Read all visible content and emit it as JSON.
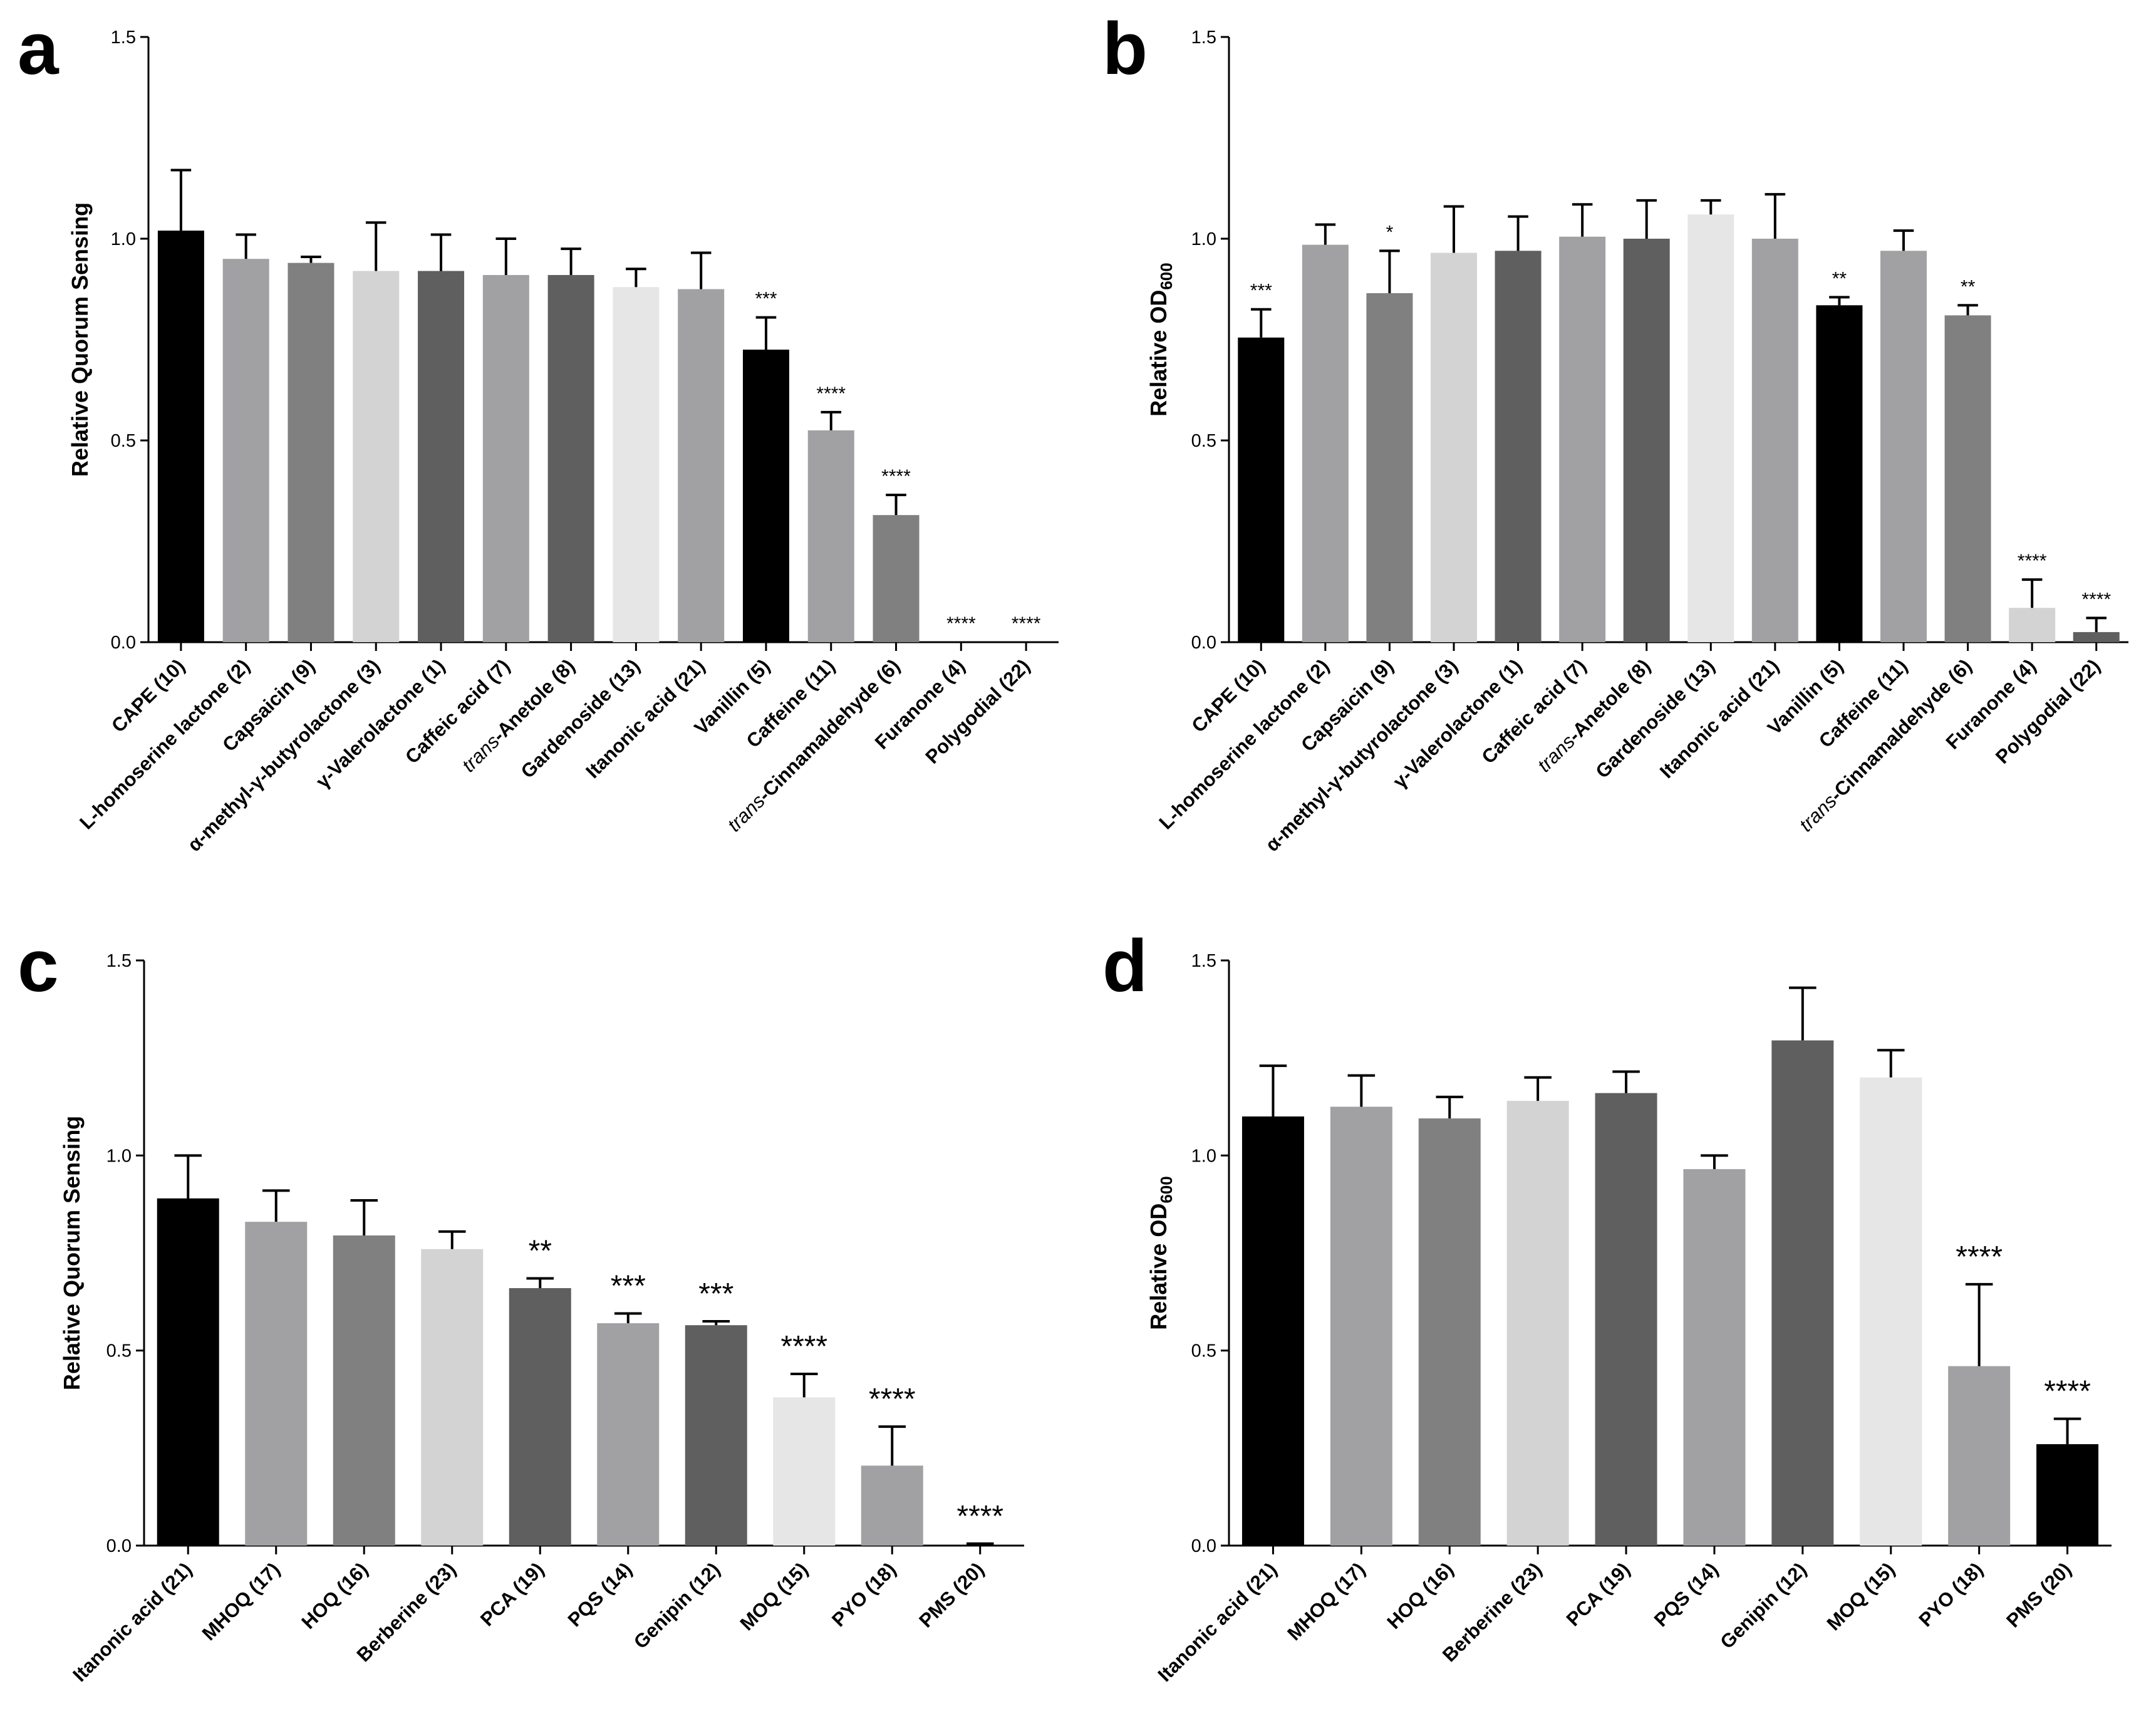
{
  "figure": {
    "panels": [
      "a",
      "b",
      "c",
      "d"
    ]
  },
  "chart_data": [
    {
      "panel": "a",
      "type": "bar",
      "title": "",
      "xlabel": "",
      "ylabel": "Relative Quorum Sensing",
      "ylim": [
        0,
        1.5
      ],
      "yticks": [
        "0.0",
        "0.5",
        "1.0",
        "1.5"
      ],
      "categories": [
        [
          "CAPE (10)"
        ],
        [
          "L-homoserine lactone (2)"
        ],
        [
          "Capsaicin (9)"
        ],
        [
          "α-methyl-γ-butyrolactone (3)"
        ],
        [
          "γ-Valerolactone (1)"
        ],
        [
          "Caffeic acid (7)"
        ],
        [
          "trans",
          "-Anetole (8)"
        ],
        [
          "Gardenoside (13)"
        ],
        [
          "Itanonic acid (21)"
        ],
        [
          "Vanillin (5)"
        ],
        [
          "Caffeine (11)"
        ],
        [
          "trans",
          "-Cinnamaldehyde (6)"
        ],
        [
          "Furanone (4)"
        ],
        [
          "Polygodial (22)"
        ]
      ],
      "values": [
        1.02,
        0.95,
        0.94,
        0.92,
        0.92,
        0.91,
        0.91,
        0.88,
        0.875,
        0.725,
        0.525,
        0.315,
        0,
        0
      ],
      "errors": [
        0.15,
        0.06,
        0.015,
        0.12,
        0.09,
        0.09,
        0.065,
        0.045,
        0.09,
        0.08,
        0.045,
        0.05,
        0,
        0
      ],
      "significance": [
        "",
        "",
        "",
        "",
        "",
        "",
        "",
        "",
        "",
        "***",
        "****",
        "****",
        "****",
        "****"
      ],
      "colors": [
        "#000000",
        "#a1a1a4",
        "#808080",
        "#d3d3d3",
        "#5f5f5f",
        "#a1a1a4",
        "#5f5f5f",
        "#e6e6e6",
        "#a1a1a4",
        "#000000",
        "#a1a1a4",
        "#808080",
        "#d3d3d3",
        "#5f5f5f"
      ]
    },
    {
      "panel": "b",
      "type": "bar",
      "title": "",
      "xlabel": "",
      "ylabel": "Relative OD",
      "ylabel_sub": "600",
      "ylim": [
        0,
        1.5
      ],
      "yticks": [
        "0.0",
        "0.5",
        "1.0",
        "1.5"
      ],
      "categories": [
        [
          "CAPE (10)"
        ],
        [
          "L-homoserine lactone (2)"
        ],
        [
          "Capsaicin (9)"
        ],
        [
          "α-methyl-γ-butyrolactone (3)"
        ],
        [
          "γ-Valerolactone (1)"
        ],
        [
          "Caffeic acid (7)"
        ],
        [
          "trans",
          "-Anetole (8)"
        ],
        [
          "Gardenoside (13)"
        ],
        [
          "Itanonic acid (21)"
        ],
        [
          "Vanillin (5)"
        ],
        [
          "Caffeine (11)"
        ],
        [
          "trans",
          "-Cinnamaldehyde (6)"
        ],
        [
          "Furanone (4)"
        ],
        [
          "Polygodial (22)"
        ]
      ],
      "values": [
        0.755,
        0.985,
        0.865,
        0.965,
        0.97,
        1.005,
        1.0,
        1.06,
        1.0,
        0.835,
        0.97,
        0.81,
        0.085,
        0.025
      ],
      "errors": [
        0.07,
        0.05,
        0.105,
        0.115,
        0.085,
        0.08,
        0.095,
        0.035,
        0.11,
        0.02,
        0.05,
        0.025,
        0.07,
        0.035
      ],
      "significance": [
        "***",
        "",
        "*",
        "",
        "",
        "",
        "",
        "",
        "",
        "**",
        "",
        "**",
        "****",
        "****"
      ],
      "colors": [
        "#000000",
        "#a1a1a4",
        "#808080",
        "#d3d3d3",
        "#5f5f5f",
        "#a1a1a4",
        "#5f5f5f",
        "#e6e6e6",
        "#a1a1a4",
        "#000000",
        "#a1a1a4",
        "#808080",
        "#d3d3d3",
        "#5f5f5f"
      ]
    },
    {
      "panel": "c",
      "type": "bar",
      "title": "",
      "xlabel": "",
      "ylabel": "Relative Quorum Sensing",
      "ylim": [
        0,
        1.5
      ],
      "yticks": [
        "0.0",
        "0.5",
        "1.0",
        "1.5"
      ],
      "categories": [
        [
          "Itanonic acid (21)"
        ],
        [
          "MHOQ (17)"
        ],
        [
          "HOQ (16)"
        ],
        [
          "Berberine (23)"
        ],
        [
          "PCA (19)"
        ],
        [
          "PQS (14)"
        ],
        [
          "Genipin (12)"
        ],
        [
          "MOQ (15)"
        ],
        [
          "PYO (18)"
        ],
        [
          "PMS (20)"
        ]
      ],
      "values": [
        0.89,
        0.83,
        0.795,
        0.76,
        0.66,
        0.57,
        0.565,
        0.38,
        0.205,
        0
      ],
      "errors": [
        0.11,
        0.08,
        0.09,
        0.045,
        0.025,
        0.025,
        0.01,
        0.06,
        0.1,
        0.005
      ],
      "significance": [
        "",
        "",
        "",
        "",
        "**",
        "***",
        "***",
        "****",
        "****",
        "****"
      ],
      "colors": [
        "#000000",
        "#a1a1a4",
        "#808080",
        "#d3d3d3",
        "#5f5f5f",
        "#a1a1a4",
        "#5f5f5f",
        "#e6e6e6",
        "#a1a1a4",
        "#000000"
      ]
    },
    {
      "panel": "d",
      "type": "bar",
      "title": "",
      "xlabel": "",
      "ylabel": "Relative OD",
      "ylabel_sub": "600",
      "ylim": [
        0,
        1.5
      ],
      "yticks": [
        "0.0",
        "0.5",
        "1.0",
        "1.5"
      ],
      "categories": [
        [
          "Itanonic acid (21)"
        ],
        [
          "MHOQ (17)"
        ],
        [
          "HOQ (16)"
        ],
        [
          "Berberine (23)"
        ],
        [
          "PCA (19)"
        ],
        [
          "PQS (14)"
        ],
        [
          "Genipin (12)"
        ],
        [
          "MOQ (15)"
        ],
        [
          "PYO (18)"
        ],
        [
          "PMS (20)"
        ]
      ],
      "values": [
        1.1,
        1.125,
        1.095,
        1.14,
        1.16,
        0.965,
        1.295,
        1.2,
        0.46,
        0.26
      ],
      "errors": [
        0.13,
        0.08,
        0.055,
        0.06,
        0.055,
        0.035,
        0.135,
        0.07,
        0.21,
        0.065
      ],
      "significance": [
        "",
        "",
        "",
        "",
        "",
        "",
        "",
        "",
        "****",
        "****"
      ],
      "colors": [
        "#000000",
        "#a1a1a4",
        "#808080",
        "#d3d3d3",
        "#5f5f5f",
        "#a1a1a4",
        "#5f5f5f",
        "#e6e6e6",
        "#a1a1a4",
        "#000000"
      ]
    }
  ]
}
